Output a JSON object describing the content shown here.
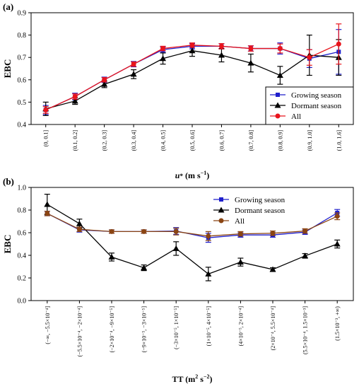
{
  "chart_data": [
    {
      "type": "line",
      "panel_label": "(a)",
      "ylabel": "EBC",
      "xlabel": "u* (m s⁻¹)",
      "xlabel_parts": {
        "var": "u",
        "sub": "*",
        "unit": " (m s",
        "exp": "−1",
        "close": ")"
      },
      "ylim": [
        0.4,
        0.9
      ],
      "yticks": [
        "0.4",
        "0.5",
        "0.6",
        "0.7",
        "0.8",
        "0.9"
      ],
      "ytick_values": [
        0.4,
        0.5,
        0.6,
        0.7,
        0.8,
        0.9
      ],
      "categories": [
        "(0, 0.1]",
        "(0.1, 0.2]",
        "(0.2, 0.3]",
        "(0.3, 0.4]",
        "(0.4, 0.5]",
        "(0.5, 0.6]",
        "(0.6, 0.7]",
        "(0.7, 0.8]",
        "(0.8, 0.9]",
        "(0.9, 1.0]",
        "(1.0, 1.6]"
      ],
      "legend_position": "right",
      "series": [
        {
          "name": "Growing season",
          "color": "#1f1fcc",
          "marker": "square",
          "values": [
            0.465,
            0.525,
            0.6,
            0.67,
            0.735,
            0.75,
            0.75,
            0.74,
            0.74,
            0.695,
            0.725
          ],
          "err": [
            0.02,
            0.015,
            0.012,
            0.012,
            0.012,
            0.012,
            0.012,
            0.012,
            0.025,
            0.04,
            0.1
          ]
        },
        {
          "name": "Dormant season",
          "color": "#000000",
          "marker": "triangle",
          "values": [
            0.47,
            0.505,
            0.58,
            0.625,
            0.695,
            0.73,
            0.71,
            0.675,
            0.62,
            0.71,
            0.7
          ],
          "err": [
            0.03,
            0.015,
            0.015,
            0.02,
            0.025,
            0.025,
            0.03,
            0.04,
            0.04,
            0.09,
            0.08
          ]
        },
        {
          "name": "All",
          "color": "#e8141c",
          "marker": "circle",
          "values": [
            0.465,
            0.525,
            0.6,
            0.67,
            0.74,
            0.755,
            0.75,
            0.74,
            0.74,
            0.7,
            0.76
          ],
          "err": [
            0.015,
            0.012,
            0.01,
            0.01,
            0.01,
            0.01,
            0.012,
            0.012,
            0.02,
            0.035,
            0.09
          ]
        }
      ]
    },
    {
      "type": "line",
      "panel_label": "(b)",
      "ylabel": "EBC",
      "xlabel": "TT (m² s⁻²)",
      "xlabel_parts": {
        "var": "TT",
        "unit": " (m",
        "exp1": "2",
        "mid": " s",
        "exp2": "−2",
        "close": ")"
      },
      "ylim": [
        0.0,
        1.0
      ],
      "yticks": [
        "0.0",
        "0.2",
        "0.4",
        "0.6",
        "0.8",
        "1.0"
      ],
      "ytick_values": [
        0.0,
        0.2,
        0.4,
        0.6,
        0.8,
        1.0
      ],
      "categories": [
        "(−∞, −5.5×10⁻⁴]",
        "(−5.5×10⁻⁴, −2×10⁻⁴]",
        "(−2×10⁻⁴, −9×10⁻⁵]",
        "(−9×10⁻⁵, −3×10⁻⁵]",
        "(−3×10⁻⁵, 1×10⁻⁵]",
        "(1×10⁻⁵, 4×10⁻⁵]",
        "(4×10⁻⁵, 2×10⁻⁴]",
        "(2×10⁻⁴, 5.5×10⁻⁴]",
        "(5.5×10⁻⁴, 1.5×10⁻³]",
        "(1.5×10⁻³, +∞)"
      ],
      "legend_position": "top-right",
      "series": [
        {
          "name": "Growing season",
          "color": "#1f1fcc",
          "marker": "square",
          "values": [
            0.77,
            0.625,
            0.61,
            0.61,
            0.615,
            0.555,
            0.58,
            0.58,
            0.605,
            0.775
          ],
          "err": [
            0.02,
            0.02,
            0.015,
            0.015,
            0.03,
            0.04,
            0.02,
            0.02,
            0.02,
            0.03
          ]
        },
        {
          "name": "Dormant season",
          "color": "#000000",
          "marker": "triangle",
          "values": [
            0.85,
            0.68,
            0.385,
            0.29,
            0.46,
            0.235,
            0.34,
            0.275,
            0.395,
            0.5
          ],
          "err": [
            0.09,
            0.04,
            0.035,
            0.025,
            0.06,
            0.06,
            0.035,
            0.015,
            0.02,
            0.035
          ]
        },
        {
          "name": "All",
          "color": "#8b4513",
          "marker": "circle",
          "values": [
            0.77,
            0.63,
            0.61,
            0.61,
            0.61,
            0.57,
            0.59,
            0.595,
            0.615,
            0.745
          ],
          "err": [
            0.02,
            0.02,
            0.015,
            0.015,
            0.03,
            0.04,
            0.02,
            0.02,
            0.02,
            0.03
          ]
        }
      ]
    }
  ]
}
